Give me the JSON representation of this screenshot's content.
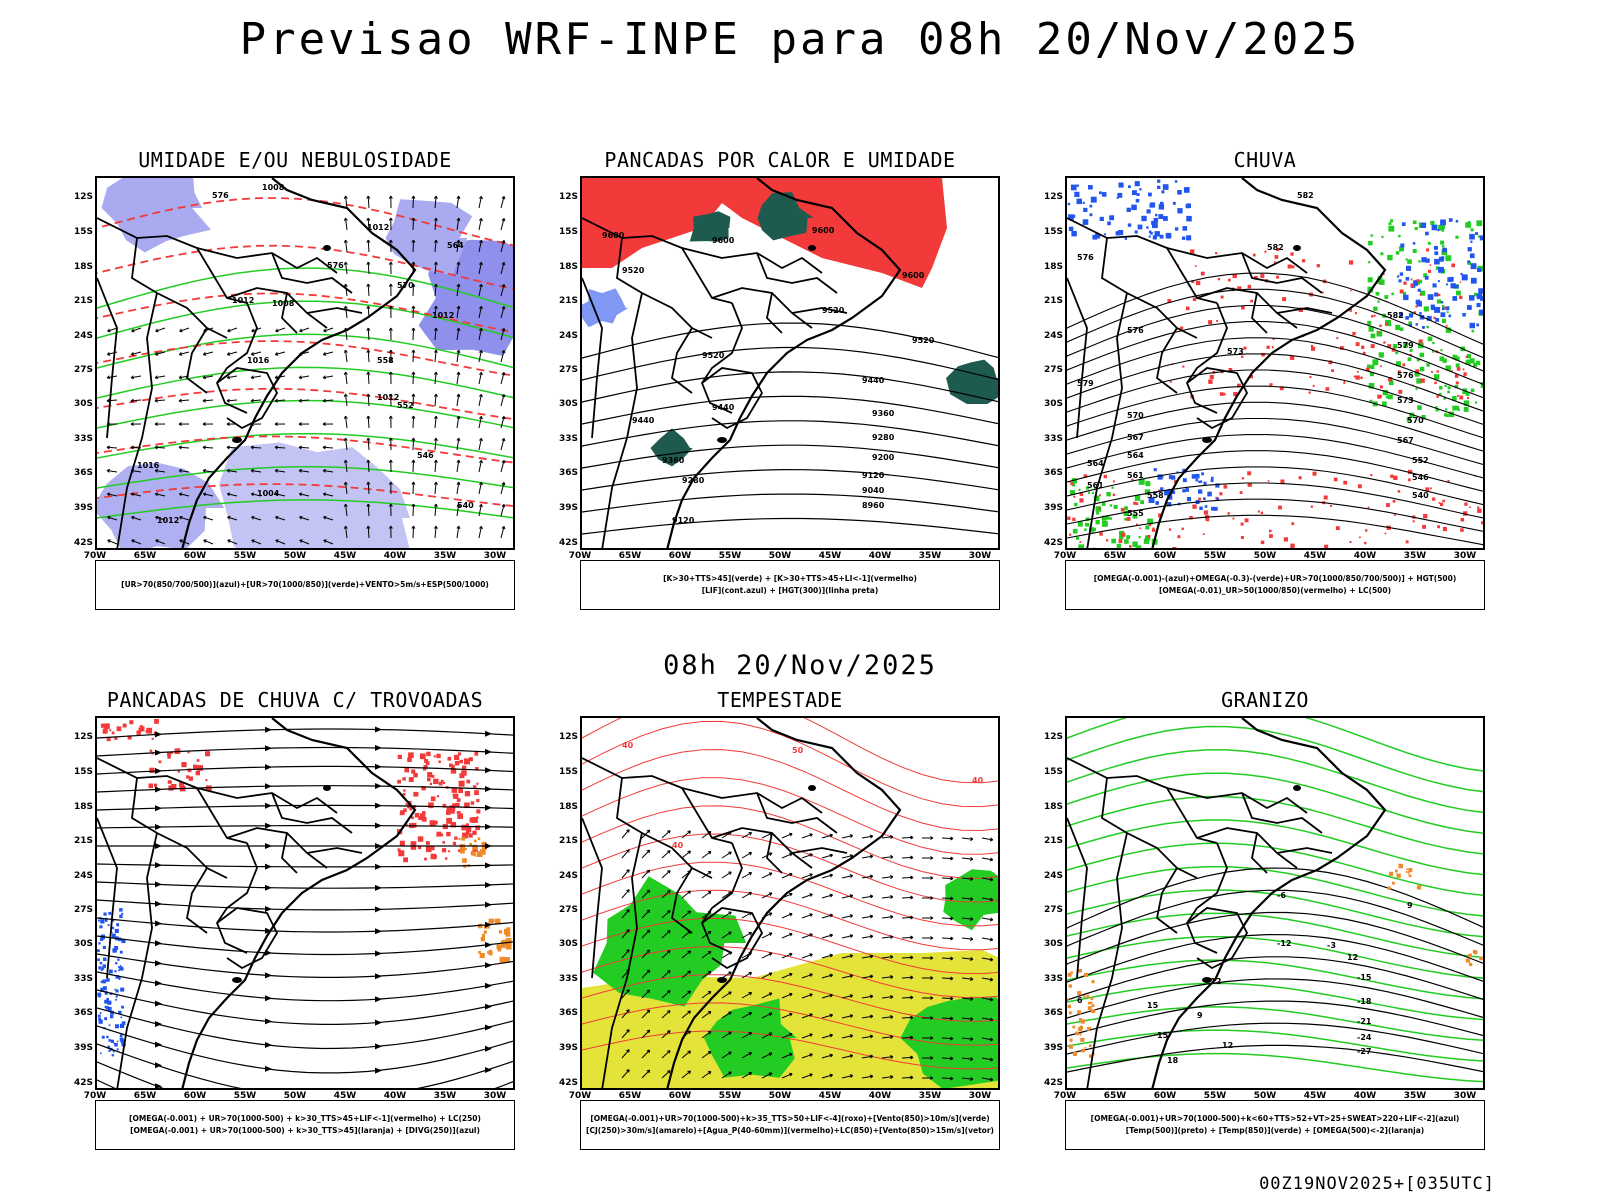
{
  "header": {
    "title": "Previsao WRF-INPE  para 08h 20/Nov/2025"
  },
  "middle_date": "08h 20/Nov/2025",
  "footer": {
    "run_label": "00Z19NOV2025+[035UTC]"
  },
  "axes": {
    "lat_labels": [
      "12S",
      "15S",
      "18S",
      "21S",
      "24S",
      "27S",
      "30S",
      "33S",
      "36S",
      "39S",
      "42S"
    ],
    "lon_labels": [
      "70W",
      "65W",
      "60W",
      "55W",
      "50W",
      "45W",
      "40W",
      "35W",
      "30W"
    ]
  },
  "colors": {
    "humidity_blue": "#a9aaf0",
    "humidity_dark": "#7a7ce8",
    "green": "#22cc22",
    "red": "#f23a3a",
    "dark_teal": "#1f5a4e",
    "blue": "#2255ee",
    "yellow": "#e4e33a",
    "orange": "#ef8a2a"
  },
  "panels": [
    {
      "title": "UMIDADE E/OU NEBULOSIDADE",
      "legend": [
        "[UR>70(850/700/500)](azul)+[UR>70(1000/850)](verde)+VENTO>5m/s+ESP(500/1000)"
      ],
      "contour_labels": [
        "1008",
        "1012",
        "1012",
        "1012",
        "1016",
        "1012",
        "1016",
        "1004",
        "1012",
        "1008",
        "576",
        "570",
        "564",
        "558",
        "552",
        "546",
        "540",
        "576"
      ]
    },
    {
      "title": "PANCADAS POR CALOR E UMIDADE",
      "legend": [
        "[K>30+TTS>45](verde)  +  [K>30+TTS>45+LI<-1](vermelho)",
        "[LIF](cont.azul)  +  [HGT(300)](linha preta)"
      ],
      "contour_labels": [
        "9600",
        "9600",
        "9600",
        "9600",
        "9520",
        "9520",
        "9520",
        "9520",
        "9440",
        "9440",
        "9440",
        "9360",
        "9360",
        "9280",
        "9280",
        "9200",
        "9120",
        "9120",
        "9040",
        "8960"
      ]
    },
    {
      "title": "CHUVA",
      "legend": [
        "[OMEGA(-0.001)-(azul)+OMEGA(-0.3)-(verde)+UR>70(1000/850/700/500)]  +  HGT(500)",
        "[OMEGA(-0.01)_UR>50(1000/850)(vermelho)  +  LC(500)"
      ],
      "contour_labels": [
        "582",
        "582",
        "576",
        "579",
        "576",
        "573",
        "570",
        "567",
        "564",
        "561",
        "558",
        "555",
        "552",
        "546",
        "540",
        "582",
        "579",
        "576",
        "573",
        "570",
        "567",
        "564",
        "561"
      ]
    },
    {
      "title": "PANCADAS DE CHUVA C/ TROVOADAS",
      "legend": [
        "[OMEGA(-0.001)  +  UR>70(1000-500)  +  k>30_TTS>45+LIF<-1](vermelho)  +  LC(250)",
        "[OMEGA(-0.001)  +  UR>70(1000-500)  +  k>30_TTS>45](laranja)  +  [DIVG(250)](azul)"
      ],
      "contour_labels": []
    },
    {
      "title": "TEMPESTADE",
      "legend": [
        "[OMEGA(-0.001)+UR>70(1000-500)+k>35_TTS>50+LIF<-4](roxo)+[Vento(850)>10m/s](verde)",
        "[CJ(250)>30m/s](amarelo)+[Agua_P(40-60mm)](vermelho)+LC(850)+[Vento(850)>15m/s](vetor)"
      ],
      "contour_labels": [
        "40",
        "40",
        "50",
        "40"
      ]
    },
    {
      "title": "GRANIZO",
      "legend": [
        "[OMEGA(-0.001)+UR>70(1000-500)+k<60+TTS>52+VT>25+SWEAT>220+LIF<-2](azul)",
        "[Temp(500)](preto)  +  [Temp(850)](verde)  +  [OMEGA(500)<-2](laranja)"
      ],
      "contour_labels": [
        "-12",
        "-12",
        "-15",
        "-18",
        "-21",
        "-24",
        "-27",
        "9",
        "6",
        "12",
        "15",
        "18",
        "12",
        "15",
        "9",
        "-6",
        "-3"
      ]
    }
  ]
}
